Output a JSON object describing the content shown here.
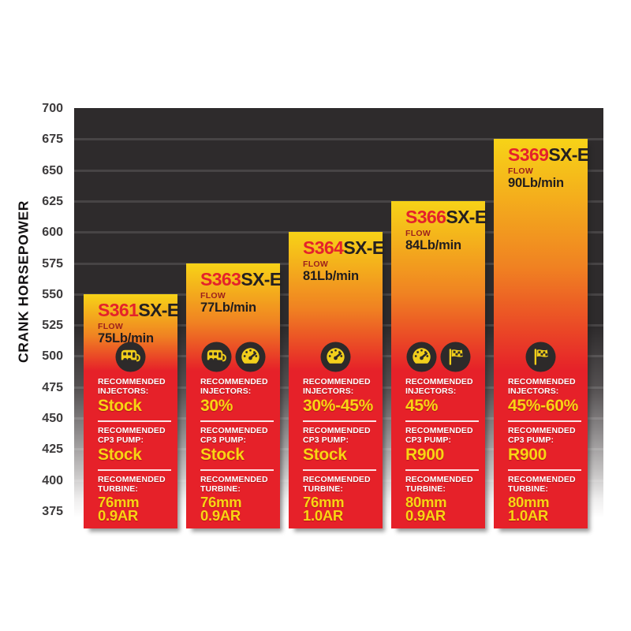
{
  "y_axis": {
    "title": "CRANK HORSEPOWER",
    "ticks": [
      700,
      675,
      650,
      625,
      600,
      575,
      550,
      525,
      500,
      475,
      450,
      425,
      400,
      375
    ]
  },
  "section_labels": {
    "flow": "FLOW",
    "injectors": "RECOMMENDED INJECTORS:",
    "cp3_pump": "RECOMMENDED CP3 PUMP:",
    "turbine": "RECOMMENDED TURBINE:"
  },
  "colors": {
    "bar_yellow": "#f7d317",
    "bar_orange": "#f08222",
    "bar_red": "#e62129",
    "plot_dark": "#2e2b2c",
    "icon_bg": "#2d2a2a",
    "icon_glyph": "#f2cf1b",
    "value_yellow": "#f9d413",
    "title_red": "#e4222b",
    "title_dark": "#242021",
    "flow_maroon": "#9c1f1d",
    "tick_gray": "#3c3a3b"
  },
  "chart_data": {
    "type": "bar",
    "ylabel": "CRANK HORSEPOWER",
    "ylim": [
      375,
      700
    ],
    "grid": true,
    "categories": [
      "S361SX-E",
      "S363SX-E",
      "S364SX-E",
      "S366SX-E",
      "S369SX-E"
    ],
    "values": [
      550,
      575,
      600,
      625,
      675
    ],
    "bars": [
      {
        "model": "S361SX-E",
        "prefix": "S361",
        "suffix": "SX-E",
        "crank_hp": 550,
        "flow": "75Lb/min",
        "icons": [
          "camper-icon"
        ],
        "injectors": "Stock",
        "cp3_pump": "Stock",
        "turbine": [
          "76mm",
          "0.9AR"
        ]
      },
      {
        "model": "S363SX-E",
        "prefix": "S363",
        "suffix": "SX-E",
        "crank_hp": 575,
        "flow": "77Lb/min",
        "icons": [
          "camper-icon",
          "gauge-icon"
        ],
        "injectors": "30%",
        "cp3_pump": "Stock",
        "turbine": [
          "76mm",
          "0.9AR"
        ]
      },
      {
        "model": "S364SX-E",
        "prefix": "S364",
        "suffix": "SX-E",
        "crank_hp": 600,
        "flow": "81Lb/min",
        "icons": [
          "gauge-icon"
        ],
        "injectors": "30%-45%",
        "cp3_pump": "Stock",
        "turbine": [
          "76mm",
          "1.0AR"
        ]
      },
      {
        "model": "S366SX-E",
        "prefix": "S366",
        "suffix": "SX-E",
        "crank_hp": 625,
        "flow": "84Lb/min",
        "icons": [
          "gauge-icon",
          "race-flag-icon"
        ],
        "injectors": "45%",
        "cp3_pump": "R900",
        "turbine": [
          "80mm",
          "0.9AR"
        ]
      },
      {
        "model": "S369SX-E",
        "prefix": "S369",
        "suffix": "SX-E",
        "crank_hp": 675,
        "flow": "90Lb/min",
        "icons": [
          "race-flag-icon"
        ],
        "injectors": "45%-60%",
        "cp3_pump": "R900",
        "turbine": [
          "80mm",
          "1.0AR"
        ]
      }
    ]
  }
}
